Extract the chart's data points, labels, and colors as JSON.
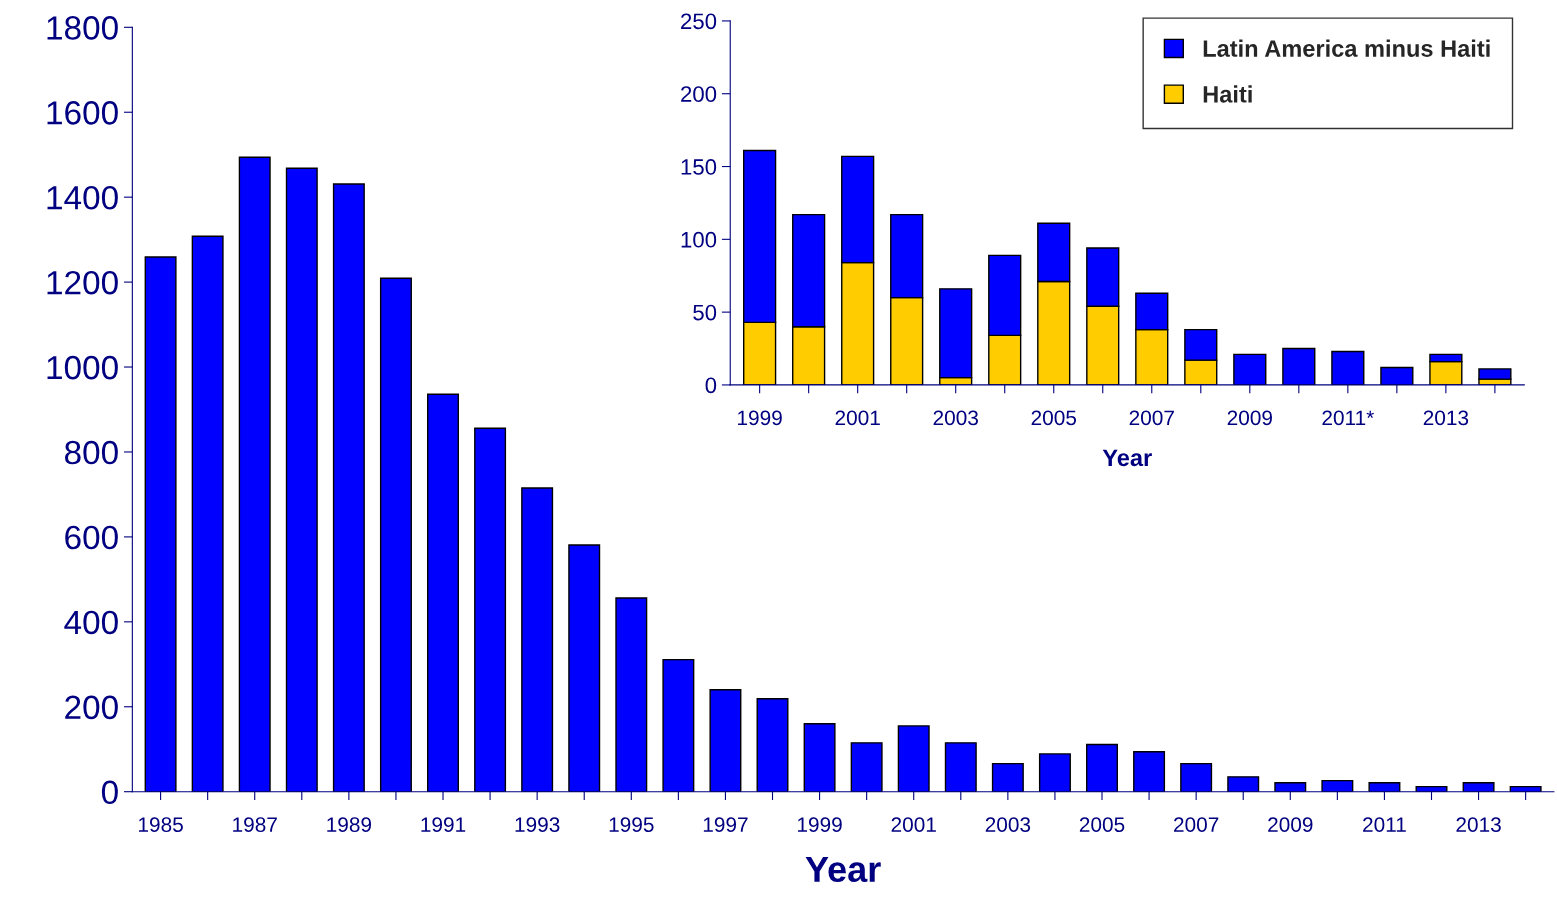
{
  "chart_data": [
    {
      "type": "bar",
      "xlabel": "Year",
      "categories": [
        "1985",
        null,
        "1987",
        null,
        "1989",
        null,
        "1991",
        null,
        "1993",
        null,
        "1995",
        null,
        "1997",
        null,
        "1999",
        null,
        "2001",
        null,
        "2003",
        null,
        "2005",
        null,
        "2007",
        null,
        "2009",
        null,
        "2011",
        null,
        "2013",
        null
      ],
      "series": [
        {
          "color": "#0000ff",
          "values": [
            1259,
            1308,
            1494,
            1468,
            1431,
            1209,
            936,
            856,
            715,
            581,
            456,
            311,
            240,
            219,
            160,
            115,
            155,
            115,
            66,
            89,
            111,
            94,
            66,
            35,
            21,
            26,
            21,
            12,
            21,
            12
          ]
        }
      ],
      "ylim": [
        0,
        1800
      ],
      "yticks": [
        0,
        200,
        400,
        600,
        800,
        1000,
        1200,
        1400,
        1600,
        1800
      ],
      "grid": false,
      "legend": false
    },
    {
      "type": "bar",
      "xlabel": "Year",
      "stacked": true,
      "categories": [
        "1999",
        null,
        "2001",
        null,
        "2003",
        null,
        "2005",
        null,
        "2007",
        null,
        "2009",
        null,
        "2011*",
        null,
        "2013",
        null
      ],
      "series": [
        {
          "name": "Haiti",
          "color": "#ffcc00",
          "values": [
            43,
            40,
            84,
            60,
            5,
            34,
            71,
            54,
            38,
            17,
            0,
            0,
            0,
            0,
            16,
            4
          ]
        },
        {
          "name": "Latin America minus Haiti",
          "color": "#0000ff",
          "values": [
            118,
            77,
            73,
            57,
            61,
            55,
            40,
            40,
            25,
            21,
            21,
            25,
            23,
            12,
            5,
            7
          ]
        }
      ],
      "ylim": [
        0,
        250
      ],
      "yticks": [
        0,
        50,
        100,
        150,
        200,
        250
      ],
      "grid": false,
      "legend": "top right"
    }
  ]
}
